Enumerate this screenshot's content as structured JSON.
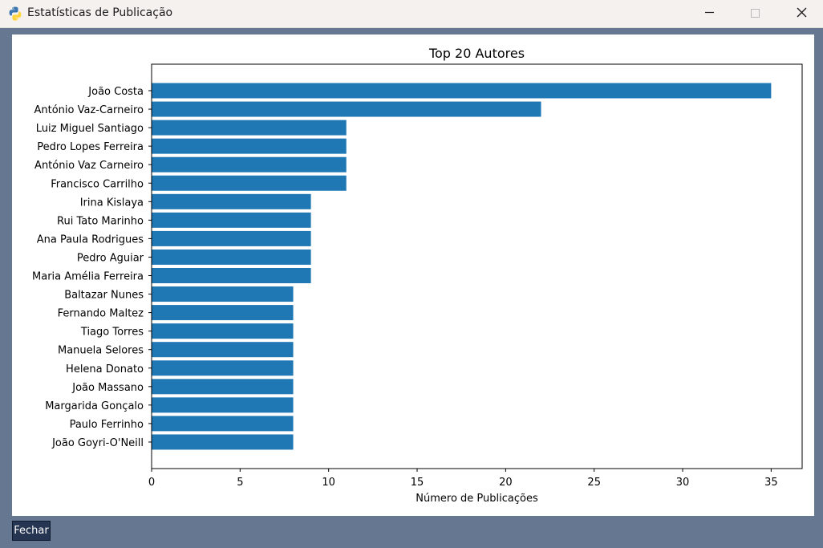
{
  "window": {
    "title": "Estatísticas de Publicação",
    "icon": "python-icon",
    "controls": [
      "minimize-icon",
      "maximize-icon",
      "close-icon"
    ]
  },
  "buttons": {
    "close_label": "Fechar"
  },
  "colors": {
    "bar": "#1f77b4",
    "background": "#667791",
    "button": "#263552"
  },
  "chart_data": {
    "type": "bar",
    "orientation": "horizontal",
    "title": "Top 20 Autores",
    "xlabel": "Número de Publicações",
    "ylabel": "",
    "xlim": [
      0,
      36.75
    ],
    "xticks": [
      0,
      5,
      10,
      15,
      20,
      25,
      30,
      35
    ],
    "grid": false,
    "categories": [
      "João Costa",
      "António Vaz-Carneiro",
      "Luiz Miguel Santiago",
      "Pedro Lopes Ferreira",
      "António Vaz Carneiro",
      "Francisco Carrilho",
      "Irina Kislaya",
      "Rui Tato Marinho",
      "Ana Paula Rodrigues",
      "Pedro Aguiar",
      "Maria Amélia Ferreira",
      "Baltazar Nunes",
      "Fernando Maltez",
      "Tiago Torres",
      "Manuela Selores",
      "Helena Donato",
      "João Massano",
      "Margarida Gonçalo",
      "Paulo Ferrinho",
      "João Goyri-O'Neill"
    ],
    "values": [
      35,
      22,
      11,
      11,
      11,
      11,
      9,
      9,
      9,
      9,
      9,
      8,
      8,
      8,
      8,
      8,
      8,
      8,
      8,
      8
    ]
  }
}
